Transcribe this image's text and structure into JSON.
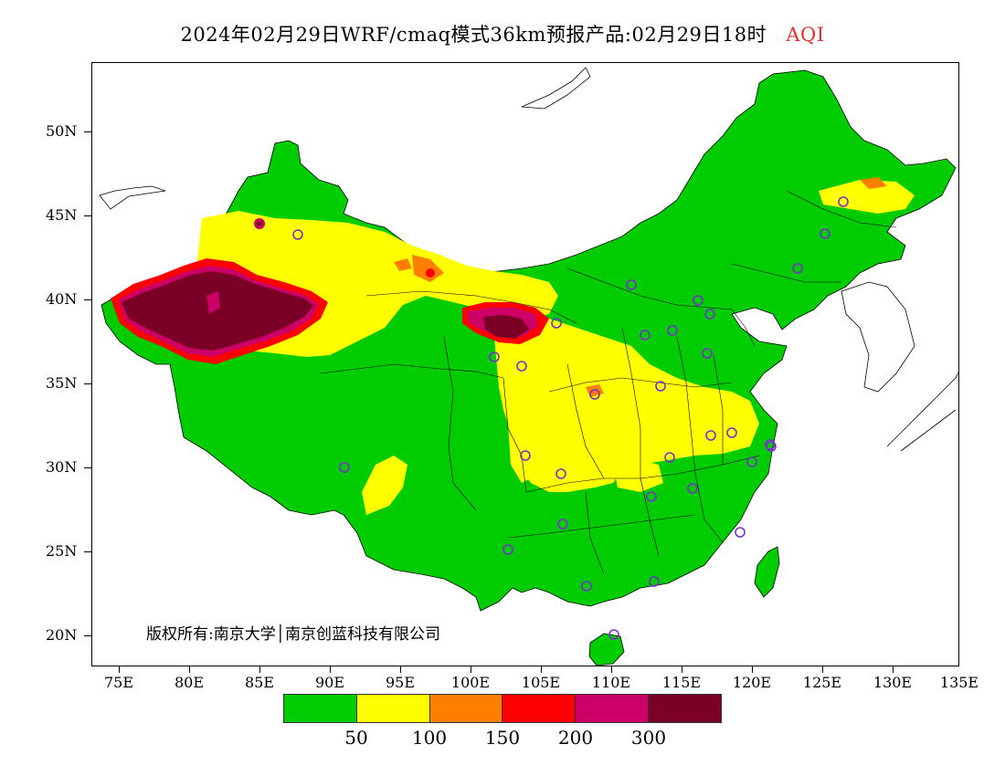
{
  "title": {
    "main": "2024年02月29日WRF/cmaq模式36km预报产品:02月29日18时",
    "variable": "AQI",
    "variable_color": "#e03030"
  },
  "copyright": "版权所有:南京大学│南京创蓝科技有限公司",
  "axes": {
    "lat_labels": [
      "50N",
      "45N",
      "40N",
      "35N",
      "30N",
      "25N",
      "20N"
    ],
    "lon_labels": [
      "75E",
      "80E",
      "85E",
      "90E",
      "95E",
      "100E",
      "105E",
      "110E",
      "115E",
      "120E",
      "125E",
      "130E",
      "135E"
    ]
  },
  "legend": {
    "colors": [
      "#00cc00",
      "#ffff00",
      "#ff8000",
      "#ff0000",
      "#cc0066",
      "#7a0026"
    ],
    "labels": [
      "50",
      "100",
      "150",
      "200",
      "300"
    ]
  },
  "map_colors": {
    "good": "#00cc00",
    "moderate": "#ffff00",
    "sensitive": "#ff8000",
    "unhealthy": "#ff0000",
    "very_unhealthy": "#cc0066",
    "hazardous": "#7a0026",
    "station": "#7b2fd0"
  }
}
